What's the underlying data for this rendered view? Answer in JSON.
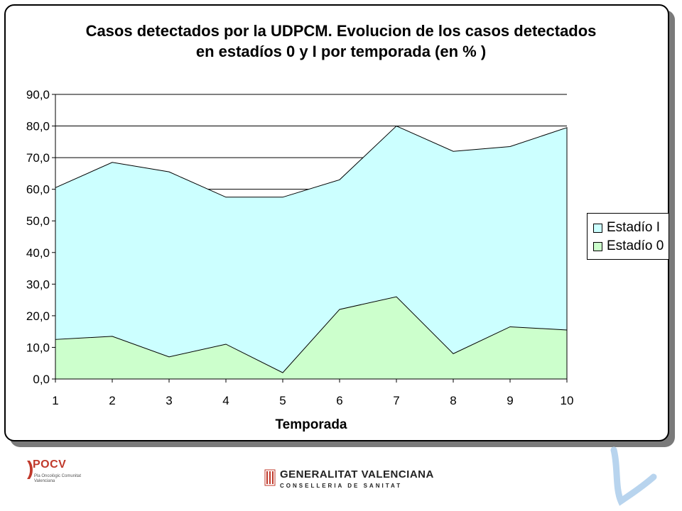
{
  "chart_data": {
    "type": "area",
    "stacked": false,
    "title": [
      "Casos detectados por la UDPCM. Evolucion de los casos detectados",
      "en estadíos 0 y I por temporada (en % )"
    ],
    "xlabel": "Temporada",
    "ylabel": "",
    "x": [
      1,
      2,
      3,
      4,
      5,
      6,
      7,
      8,
      9,
      10
    ],
    "x_tick_labels": [
      "1",
      "2",
      "3",
      "4",
      "5",
      "6",
      "7",
      "8",
      "9",
      "10"
    ],
    "ylim": [
      0,
      90
    ],
    "y_tick_labels": [
      "0,0",
      "10,0",
      "20,0",
      "30,0",
      "40,0",
      "50,0",
      "60,0",
      "70,0",
      "80,0",
      "90,0"
    ],
    "grid": "horizontal",
    "legend_position": "right",
    "series": [
      {
        "name": "Estadío I",
        "color": "#ccffff",
        "values": [
          60.5,
          68.5,
          65.5,
          57.5,
          57.5,
          63.0,
          80.0,
          72.0,
          73.5,
          79.5
        ]
      },
      {
        "name": "Estadío 0",
        "color": "#ccffcc",
        "values": [
          12.5,
          13.5,
          7.0,
          11.0,
          2.0,
          22.0,
          26.0,
          8.0,
          16.5,
          15.5
        ]
      }
    ]
  },
  "footer": {
    "left_logo_text": "POCV",
    "left_logo_subtitle": "Pla Oncològic Comunitat Valenciana",
    "center_logo_name": "GENERALITAT VALENCIANA",
    "center_logo_dept": "CONSELLERIA DE SANITAT"
  }
}
